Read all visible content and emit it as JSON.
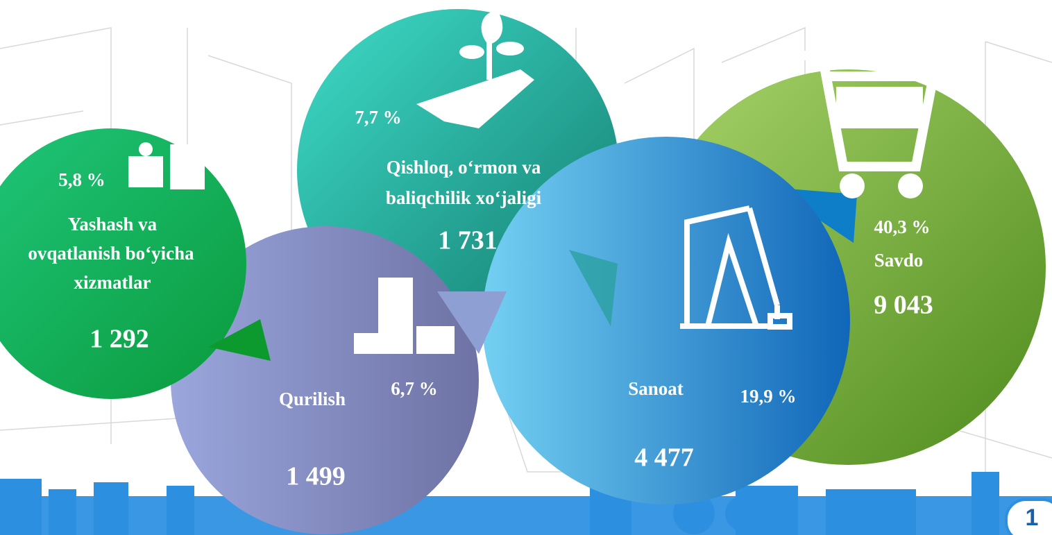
{
  "items": [
    {
      "percent": "5,8 %",
      "label": [
        "Yashash va",
        "ovqatlanish bo‘yicha",
        "xizmatlar"
      ],
      "value": "1 292"
    },
    {
      "percent": "7,7 %",
      "label": [
        "Qishloq, o‘rmon va",
        "baliqchilik xo‘jaligi"
      ],
      "value": "1 731"
    },
    {
      "percent": "6,7 %",
      "label": [
        "Qurilish"
      ],
      "value": "1 499"
    },
    {
      "percent": "19,9 %",
      "label": [
        "Sanoat"
      ],
      "value": "4 477"
    },
    {
      "percent": "40,3 %",
      "label": [
        "Savdo"
      ],
      "value": "9 043"
    }
  ],
  "page_number": "1"
}
